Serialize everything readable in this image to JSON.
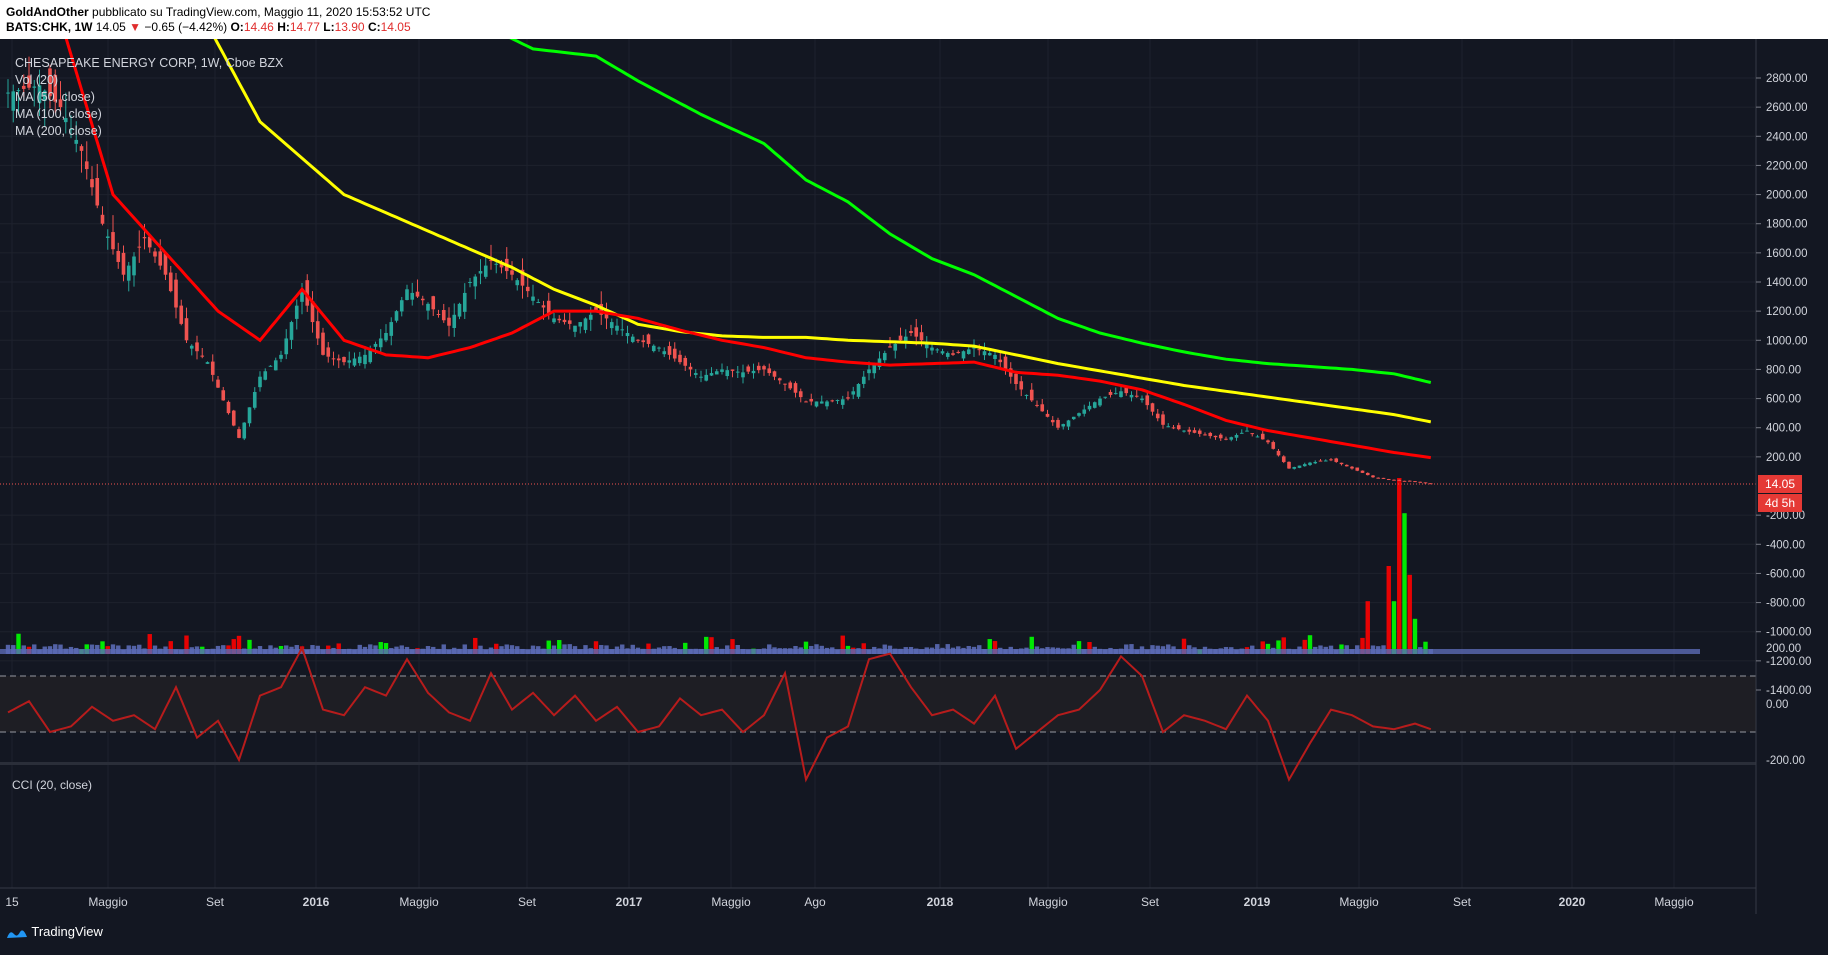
{
  "header": {
    "author": "GoldAndOther",
    "published": "pubblicato su TradingView.com, Maggio 11, 2020 15:53:52 UTC",
    "symbol": "BATS:CHK, 1W",
    "last": "14.05",
    "change": "−0.65 (−4.42%)",
    "o_label": "O:",
    "o": "14.46",
    "h_label": "H:",
    "h": "14.77",
    "l_label": "L:",
    "l": "13.90",
    "c_label": "C:",
    "c": "14.05"
  },
  "legend": {
    "title": "CHESAPEAKE ENERGY CORP, 1W, Cboe BZX",
    "vol": "Vol (20)",
    "ma50": "MA (50, close)",
    "ma100": "MA (100, close)",
    "ma200": "MA (200, close)"
  },
  "price_tag": "14.05",
  "countdown_tag": "4d 5h",
  "cci_label": "CCI (20, close)",
  "footer_brand": "TradingView",
  "colors": {
    "background": "#131722",
    "up": "#26a69a",
    "down": "#ef5350",
    "ma50": "#ff0000",
    "ma100": "#ffff00",
    "ma200": "#00ff00",
    "vol_up": "#00ff00",
    "vol_down": "#ff0000",
    "vol_base": "#5b6ab5",
    "cci": "#b71c1c"
  },
  "chart_data": {
    "type": "candlestick",
    "title": "CHESAPEAKE ENERGY CORP, 1W, Cboe BZX",
    "price_axis_ticks": [
      "2800.00",
      "2600.00",
      "2400.00",
      "2200.00",
      "2000.00",
      "1800.00",
      "1600.00",
      "1400.00",
      "1200.00",
      "1000.00",
      "800.00",
      "600.00",
      "400.00",
      "200.00",
      "-200.00",
      "-400.00",
      "-600.00",
      "-800.00",
      "-1000.00",
      "-1200.00",
      "-1400.00"
    ],
    "cci_axis_ticks": [
      "200.00",
      "0.00",
      "-200.00"
    ],
    "time_axis_labels": [
      "15",
      "Maggio",
      "Set",
      "2016",
      "Maggio",
      "Set",
      "2017",
      "Maggio",
      "Ago",
      "2018",
      "Maggio",
      "Set",
      "2019",
      "Maggio",
      "Set",
      "2020",
      "Maggio"
    ],
    "price_ylim": [
      -1450,
      2950
    ],
    "cci_ylim": [
      -320,
      240
    ],
    "cci_bands": [
      100,
      -100
    ],
    "close_keyframes": [
      [
        0,
        2700
      ],
      [
        6,
        2750
      ],
      [
        10,
        2600
      ],
      [
        14,
        2300
      ],
      [
        18,
        1800
      ],
      [
        22,
        1450
      ],
      [
        26,
        1700
      ],
      [
        30,
        1450
      ],
      [
        34,
        1000
      ],
      [
        38,
        850
      ],
      [
        42,
        500
      ],
      [
        44,
        330
      ],
      [
        48,
        750
      ],
      [
        52,
        900
      ],
      [
        56,
        1350
      ],
      [
        60,
        900
      ],
      [
        64,
        850
      ],
      [
        68,
        900
      ],
      [
        72,
        1050
      ],
      [
        76,
        1350
      ],
      [
        80,
        1250
      ],
      [
        84,
        1100
      ],
      [
        88,
        1400
      ],
      [
        92,
        1550
      ],
      [
        96,
        1450
      ],
      [
        100,
        1300
      ],
      [
        104,
        1150
      ],
      [
        108,
        1100
      ],
      [
        112,
        1200
      ],
      [
        116,
        1100
      ],
      [
        120,
        1000
      ],
      [
        124,
        950
      ],
      [
        128,
        850
      ],
      [
        132,
        750
      ],
      [
        136,
        800
      ],
      [
        140,
        780
      ],
      [
        144,
        800
      ],
      [
        148,
        700
      ],
      [
        152,
        580
      ],
      [
        156,
        580
      ],
      [
        160,
        600
      ],
      [
        164,
        800
      ],
      [
        168,
        950
      ],
      [
        172,
        1050
      ],
      [
        176,
        950
      ],
      [
        180,
        900
      ],
      [
        184,
        950
      ],
      [
        188,
        900
      ],
      [
        192,
        700
      ],
      [
        196,
        550
      ],
      [
        200,
        400
      ],
      [
        204,
        500
      ],
      [
        208,
        600
      ],
      [
        212,
        650
      ],
      [
        216,
        600
      ],
      [
        220,
        420
      ],
      [
        224,
        380
      ],
      [
        228,
        350
      ],
      [
        232,
        320
      ],
      [
        236,
        380
      ],
      [
        240,
        300
      ],
      [
        244,
        120
      ],
      [
        248,
        160
      ],
      [
        252,
        180
      ],
      [
        256,
        120
      ],
      [
        260,
        60
      ],
      [
        264,
        40
      ],
      [
        268,
        30
      ],
      [
        271,
        14.05
      ]
    ],
    "ma50_keyframes": [
      [
        0,
        4400
      ],
      [
        20,
        2000
      ],
      [
        30,
        1600
      ],
      [
        40,
        1200
      ],
      [
        48,
        1000
      ],
      [
        56,
        1350
      ],
      [
        64,
        1000
      ],
      [
        72,
        900
      ],
      [
        80,
        880
      ],
      [
        88,
        950
      ],
      [
        96,
        1050
      ],
      [
        104,
        1200
      ],
      [
        112,
        1200
      ],
      [
        120,
        1150
      ],
      [
        128,
        1070
      ],
      [
        136,
        1000
      ],
      [
        144,
        950
      ],
      [
        152,
        880
      ],
      [
        160,
        850
      ],
      [
        168,
        830
      ],
      [
        176,
        840
      ],
      [
        184,
        850
      ],
      [
        192,
        780
      ],
      [
        200,
        760
      ],
      [
        208,
        720
      ],
      [
        216,
        660
      ],
      [
        224,
        560
      ],
      [
        232,
        450
      ],
      [
        240,
        380
      ],
      [
        248,
        330
      ],
      [
        256,
        280
      ],
      [
        264,
        230
      ],
      [
        271,
        195
      ]
    ],
    "ma100_keyframes": [
      [
        0,
        4800
      ],
      [
        30,
        3700
      ],
      [
        48,
        2500
      ],
      [
        64,
        2000
      ],
      [
        80,
        1750
      ],
      [
        96,
        1500
      ],
      [
        104,
        1350
      ],
      [
        112,
        1240
      ],
      [
        120,
        1110
      ],
      [
        128,
        1060
      ],
      [
        136,
        1030
      ],
      [
        144,
        1020
      ],
      [
        152,
        1020
      ],
      [
        160,
        1000
      ],
      [
        168,
        990
      ],
      [
        176,
        980
      ],
      [
        184,
        960
      ],
      [
        192,
        900
      ],
      [
        200,
        840
      ],
      [
        208,
        790
      ],
      [
        216,
        740
      ],
      [
        224,
        690
      ],
      [
        232,
        650
      ],
      [
        240,
        610
      ],
      [
        248,
        570
      ],
      [
        256,
        530
      ],
      [
        264,
        490
      ],
      [
        271,
        440
      ]
    ],
    "ma200_keyframes": [
      [
        0,
        6000
      ],
      [
        60,
        3700
      ],
      [
        100,
        3000
      ],
      [
        112,
        2950
      ],
      [
        120,
        2780
      ],
      [
        132,
        2550
      ],
      [
        144,
        2350
      ],
      [
        152,
        2100
      ],
      [
        160,
        1950
      ],
      [
        168,
        1730
      ],
      [
        176,
        1560
      ],
      [
        184,
        1450
      ],
      [
        192,
        1300
      ],
      [
        200,
        1150
      ],
      [
        208,
        1050
      ],
      [
        216,
        980
      ],
      [
        224,
        920
      ],
      [
        232,
        870
      ],
      [
        240,
        840
      ],
      [
        248,
        820
      ],
      [
        256,
        800
      ],
      [
        264,
        770
      ],
      [
        271,
        710
      ]
    ],
    "cci_keyframes": [
      [
        0,
        -30
      ],
      [
        4,
        10
      ],
      [
        8,
        -100
      ],
      [
        12,
        -80
      ],
      [
        16,
        -10
      ],
      [
        20,
        -60
      ],
      [
        24,
        -40
      ],
      [
        28,
        -90
      ],
      [
        32,
        60
      ],
      [
        36,
        -120
      ],
      [
        40,
        -60
      ],
      [
        44,
        -200
      ],
      [
        48,
        30
      ],
      [
        52,
        60
      ],
      [
        56,
        200
      ],
      [
        60,
        -20
      ],
      [
        64,
        -40
      ],
      [
        68,
        60
      ],
      [
        72,
        30
      ],
      [
        76,
        160
      ],
      [
        80,
        40
      ],
      [
        84,
        -30
      ],
      [
        88,
        -60
      ],
      [
        92,
        110
      ],
      [
        96,
        -20
      ],
      [
        100,
        40
      ],
      [
        104,
        -40
      ],
      [
        108,
        30
      ],
      [
        112,
        -60
      ],
      [
        116,
        -10
      ],
      [
        120,
        -100
      ],
      [
        124,
        -80
      ],
      [
        128,
        20
      ],
      [
        132,
        -40
      ],
      [
        136,
        -20
      ],
      [
        140,
        -100
      ],
      [
        144,
        -40
      ],
      [
        148,
        110
      ],
      [
        152,
        -270
      ],
      [
        156,
        -120
      ],
      [
        160,
        -80
      ],
      [
        164,
        160
      ],
      [
        168,
        180
      ],
      [
        172,
        60
      ],
      [
        176,
        -40
      ],
      [
        180,
        -20
      ],
      [
        184,
        -70
      ],
      [
        188,
        30
      ],
      [
        192,
        -160
      ],
      [
        196,
        -100
      ],
      [
        200,
        -40
      ],
      [
        204,
        -20
      ],
      [
        208,
        50
      ],
      [
        212,
        170
      ],
      [
        216,
        100
      ],
      [
        220,
        -100
      ],
      [
        224,
        -40
      ],
      [
        228,
        -60
      ],
      [
        232,
        -90
      ],
      [
        236,
        30
      ],
      [
        240,
        -60
      ],
      [
        244,
        -270
      ],
      [
        248,
        -140
      ],
      [
        252,
        -20
      ],
      [
        256,
        -40
      ],
      [
        260,
        -80
      ],
      [
        264,
        -90
      ],
      [
        268,
        -70
      ],
      [
        271,
        -90
      ]
    ],
    "volume_spikes": [
      [
        259,
        0.3
      ],
      [
        263,
        0.5
      ],
      [
        264,
        0.3
      ],
      [
        265,
        1.0
      ],
      [
        266,
        0.8
      ],
      [
        267,
        0.45
      ],
      [
        268,
        0.2
      ]
    ]
  }
}
